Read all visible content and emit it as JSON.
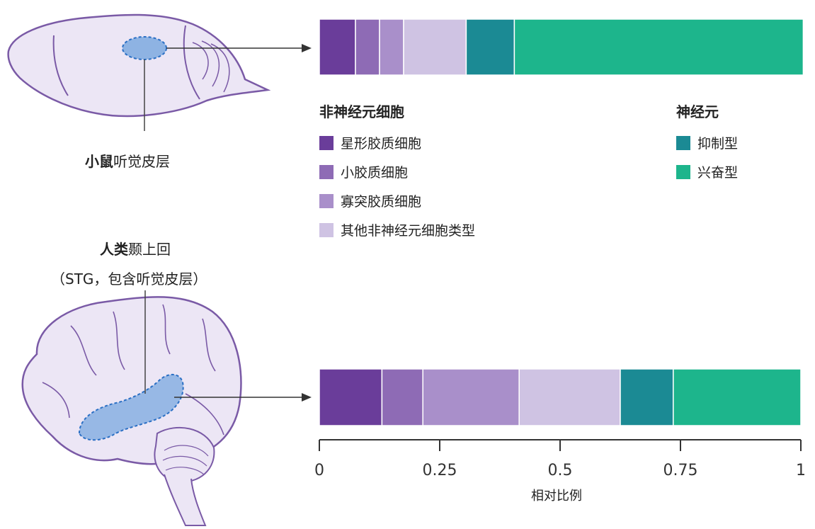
{
  "labels": {
    "mouse_bold": "小鼠",
    "mouse_rest": "听觉皮层",
    "human_bold": "人类",
    "human_rest": "颞上回",
    "human_sub": "（STG，包含听觉皮层）"
  },
  "legend_non_neuronal": {
    "title": "非神经元细胞",
    "items": [
      {
        "label": "星形胶质细胞",
        "color": "#6a3d9a"
      },
      {
        "label": "小胶质细胞",
        "color": "#8e6bb5"
      },
      {
        "label": "寡突胶质细胞",
        "color": "#a98fca"
      },
      {
        "label": "其他非神经元细胞类型",
        "color": "#cfc3e3"
      }
    ]
  },
  "legend_neurons": {
    "title": "神经元",
    "items": [
      {
        "label": "抑制型",
        "color": "#1b8a94"
      },
      {
        "label": "兴奋型",
        "color": "#1db58c"
      }
    ]
  },
  "chart_data": {
    "type": "bar",
    "orientation": "horizontal",
    "stacked": true,
    "categories": [
      "小鼠",
      "人类"
    ],
    "series": [
      {
        "name": "星形胶质细胞",
        "color": "#6a3d9a",
        "values": [
          0.075,
          0.13
        ]
      },
      {
        "name": "小胶质细胞",
        "color": "#8e6bb5",
        "values": [
          0.05,
          0.085
        ]
      },
      {
        "name": "寡突胶质细胞",
        "color": "#a98fca",
        "values": [
          0.05,
          0.2
        ]
      },
      {
        "name": "其他非神经元细胞类型",
        "color": "#cfc3e3",
        "values": [
          0.13,
          0.21
        ]
      },
      {
        "name": "抑制型",
        "color": "#1b8a94",
        "values": [
          0.1,
          0.11
        ]
      },
      {
        "name": "兴奋型",
        "color": "#1db58c",
        "values": [
          0.6,
          0.265
        ]
      }
    ],
    "xlim": [
      0,
      1
    ],
    "xticks": [
      0,
      0.25,
      0.5,
      0.75,
      1
    ],
    "xticklabels": [
      "0",
      "0.25",
      "0.5",
      "0.75",
      "1"
    ],
    "xlabel": "相对比例",
    "ylabel": "",
    "title": "",
    "grid": false
  }
}
